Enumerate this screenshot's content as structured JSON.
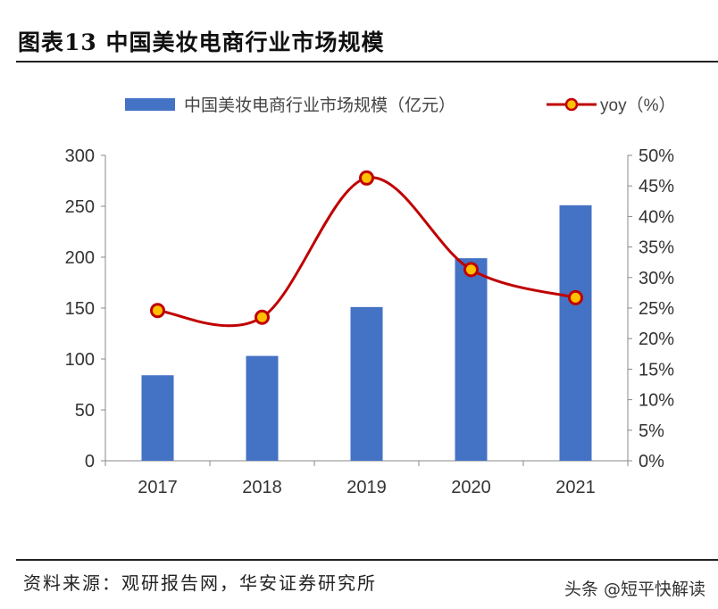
{
  "header": {
    "title": "图表13  中国美妆电商行业市场规模"
  },
  "footer": {
    "source": "资料来源：观研报告网，华安证券研究所",
    "watermark": "头条 @短平快解读"
  },
  "chart_data": {
    "type": "bar+line",
    "title": "图表13  中国美妆电商行业市场规模",
    "categories": [
      "2017",
      "2018",
      "2019",
      "2020",
      "2021"
    ],
    "series": [
      {
        "name": "中国美妆电商行业市场规模（亿元）",
        "type": "bar",
        "axis": "left",
        "color": "#4472C4",
        "values": [
          84,
          103,
          151,
          199,
          251
        ]
      },
      {
        "name": "yoy（%）",
        "type": "line",
        "axis": "right",
        "color": "#C00000",
        "marker_color": "#FFC000",
        "values": [
          24.6,
          23.5,
          46.3,
          31.3,
          26.7
        ]
      }
    ],
    "left_axis": {
      "ylim": [
        0,
        300
      ],
      "ticks": [
        "0",
        "50",
        "100",
        "150",
        "200",
        "250",
        "300"
      ]
    },
    "right_axis": {
      "ylim": [
        0,
        50
      ],
      "ticks": [
        "0%",
        "5%",
        "10%",
        "15%",
        "20%",
        "25%",
        "30%",
        "35%",
        "40%",
        "45%",
        "50%"
      ]
    },
    "legend_position": "top",
    "grid": false
  }
}
